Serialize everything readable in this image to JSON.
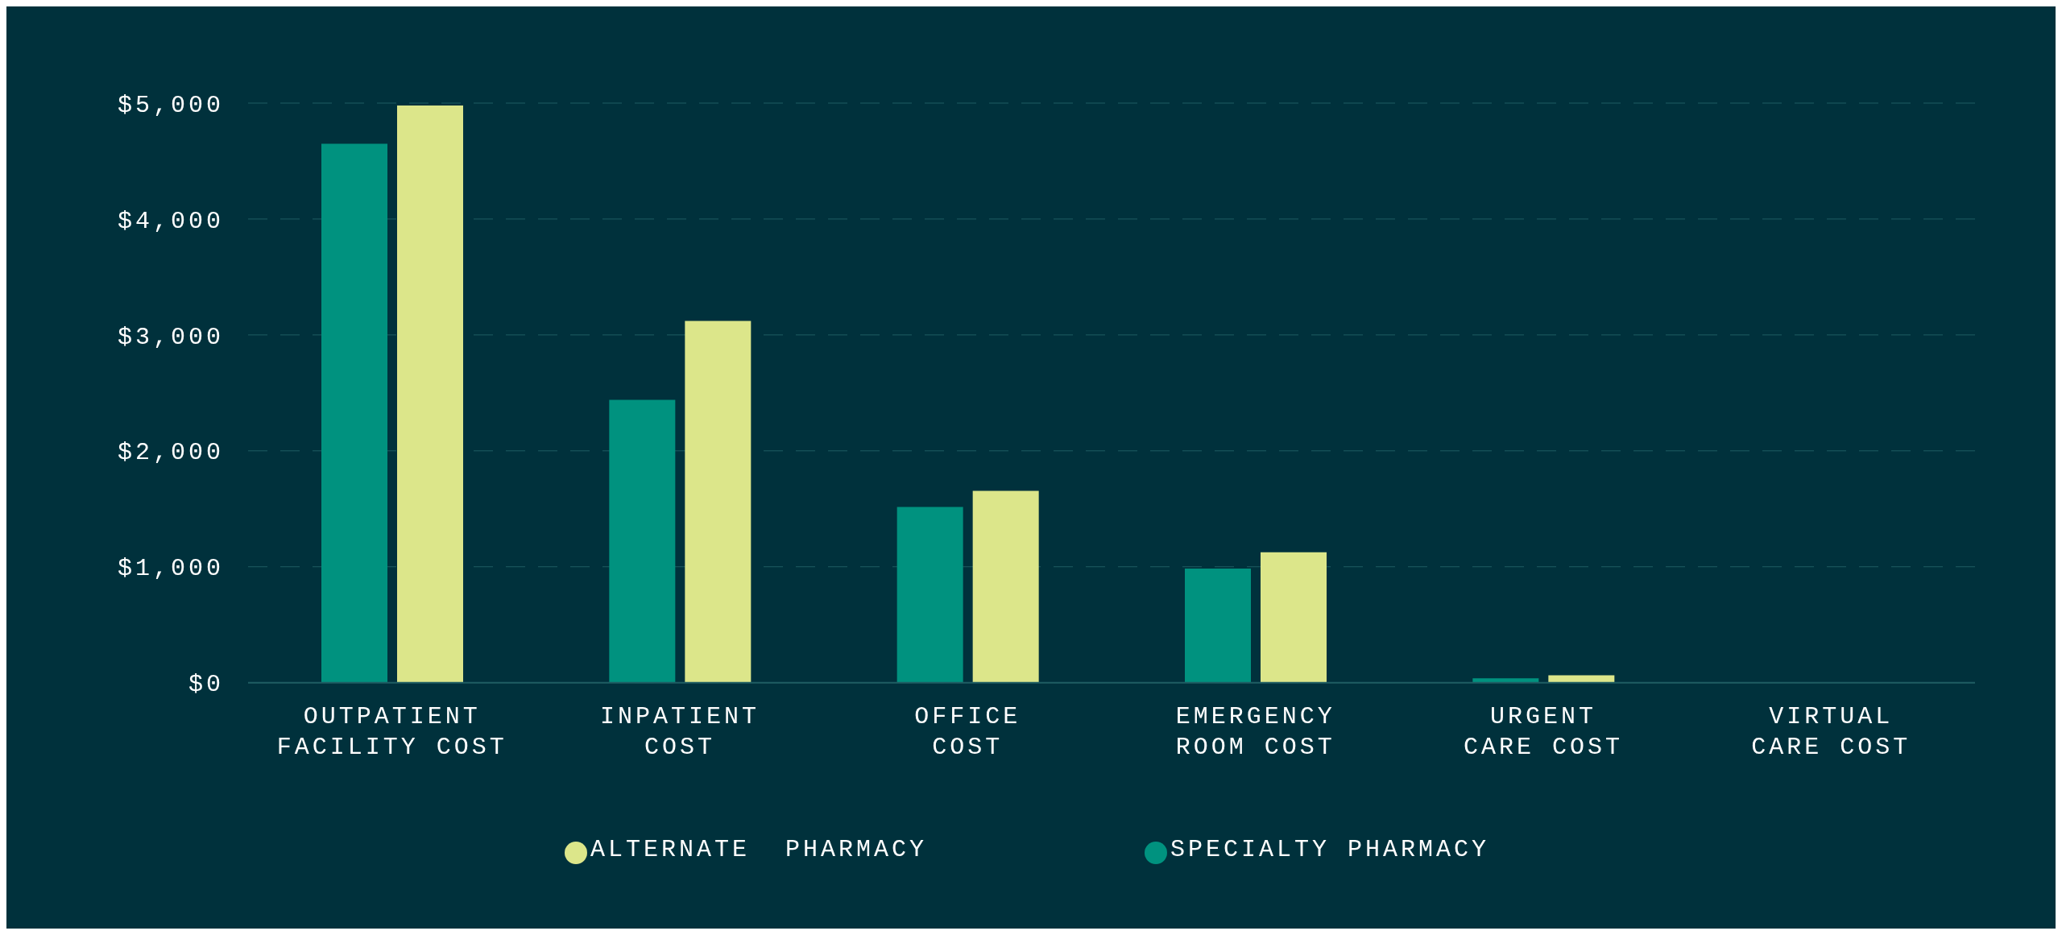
{
  "chart_data": {
    "type": "bar",
    "categories": [
      "OUTPATIENT FACILITY COST",
      "INPATIENT COST",
      "OFFICE COST",
      "EMERGENCY ROOM COST",
      "URGENT CARE COST",
      "VIRTUAL CARE COST"
    ],
    "series": [
      {
        "name": "SPECIALTY PHARMACY",
        "color": "#00927f",
        "values": [
          4650,
          2440,
          1515,
          985,
          38,
          0
        ]
      },
      {
        "name": "ALTERNATE  PHARMACY",
        "color": "#dce68a",
        "values": [
          4980,
          3120,
          1655,
          1125,
          63,
          0
        ]
      }
    ],
    "ylim": [
      0,
      5000
    ],
    "yticks": [
      {
        "value": 0,
        "label": "$0"
      },
      {
        "value": 1000,
        "label": "$1,000"
      },
      {
        "value": 2000,
        "label": "$2,000"
      },
      {
        "value": 3000,
        "label": "$3,000"
      },
      {
        "value": 4000,
        "label": "$4,000"
      },
      {
        "value": 5000,
        "label": "$5,000"
      }
    ],
    "grid": "y",
    "legend": "bottom"
  }
}
